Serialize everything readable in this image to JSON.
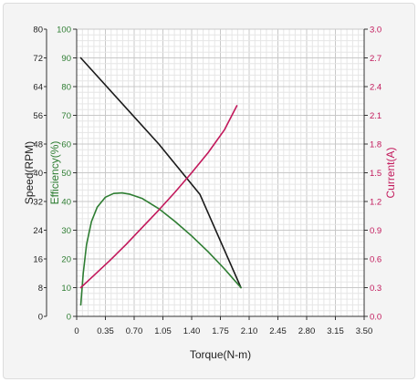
{
  "chart_data": {
    "type": "line",
    "x_axis": {
      "label": "Torque(N-m)",
      "range": [
        0,
        3.5
      ],
      "ticks": [
        "0",
        "0.35",
        "0.70",
        "1.05",
        "1.40",
        "1.75",
        "2.10",
        "2.45",
        "2.80",
        "3.15",
        "3.50"
      ]
    },
    "y_axes": [
      {
        "id": "speed",
        "label": "Speed(RPM)",
        "range": [
          0,
          80
        ],
        "ticks": [
          "0",
          "8",
          "16",
          "24",
          "32",
          "40",
          "48",
          "56",
          "64",
          "72",
          "80"
        ],
        "color": "#222222"
      },
      {
        "id": "efficiency",
        "label": "Efficiency(%)",
        "range": [
          0,
          100
        ],
        "ticks": [
          "0",
          "10",
          "20",
          "30",
          "40",
          "50",
          "60",
          "70",
          "80",
          "90",
          "100"
        ],
        "color": "#2e7d32"
      },
      {
        "id": "current",
        "label": "Current(A)",
        "range": [
          0,
          3.0
        ],
        "ticks": [
          "0.0",
          "0.3",
          "0.6",
          "0.9",
          "1.2",
          "1.5",
          "1.8",
          "2.1",
          "2.4",
          "2.7",
          "3.0"
        ],
        "color": "#c2185b"
      }
    ],
    "grid": true,
    "series": [
      {
        "axis": "speed",
        "color": "#1a1a1a",
        "points": [
          [
            0.05,
            72
          ],
          [
            1.0,
            48
          ],
          [
            1.5,
            34
          ],
          [
            2.0,
            8
          ]
        ]
      },
      {
        "axis": "efficiency",
        "color": "#2e7d32",
        "points": [
          [
            0.05,
            4
          ],
          [
            0.08,
            15
          ],
          [
            0.12,
            25
          ],
          [
            0.18,
            33
          ],
          [
            0.25,
            38
          ],
          [
            0.35,
            41.5
          ],
          [
            0.45,
            42.8
          ],
          [
            0.55,
            43
          ],
          [
            0.65,
            42.5
          ],
          [
            0.8,
            41
          ],
          [
            1.0,
            37.5
          ],
          [
            1.2,
            33
          ],
          [
            1.4,
            28
          ],
          [
            1.6,
            22.5
          ],
          [
            1.8,
            16.5
          ],
          [
            2.0,
            10
          ]
        ]
      },
      {
        "axis": "current",
        "color": "#c2185b",
        "points": [
          [
            0.05,
            0.3
          ],
          [
            0.2,
            0.42
          ],
          [
            0.4,
            0.58
          ],
          [
            0.6,
            0.75
          ],
          [
            0.8,
            0.93
          ],
          [
            1.0,
            1.11
          ],
          [
            1.2,
            1.3
          ],
          [
            1.4,
            1.5
          ],
          [
            1.6,
            1.71
          ],
          [
            1.8,
            1.95
          ],
          [
            1.95,
            2.2
          ]
        ]
      }
    ]
  }
}
